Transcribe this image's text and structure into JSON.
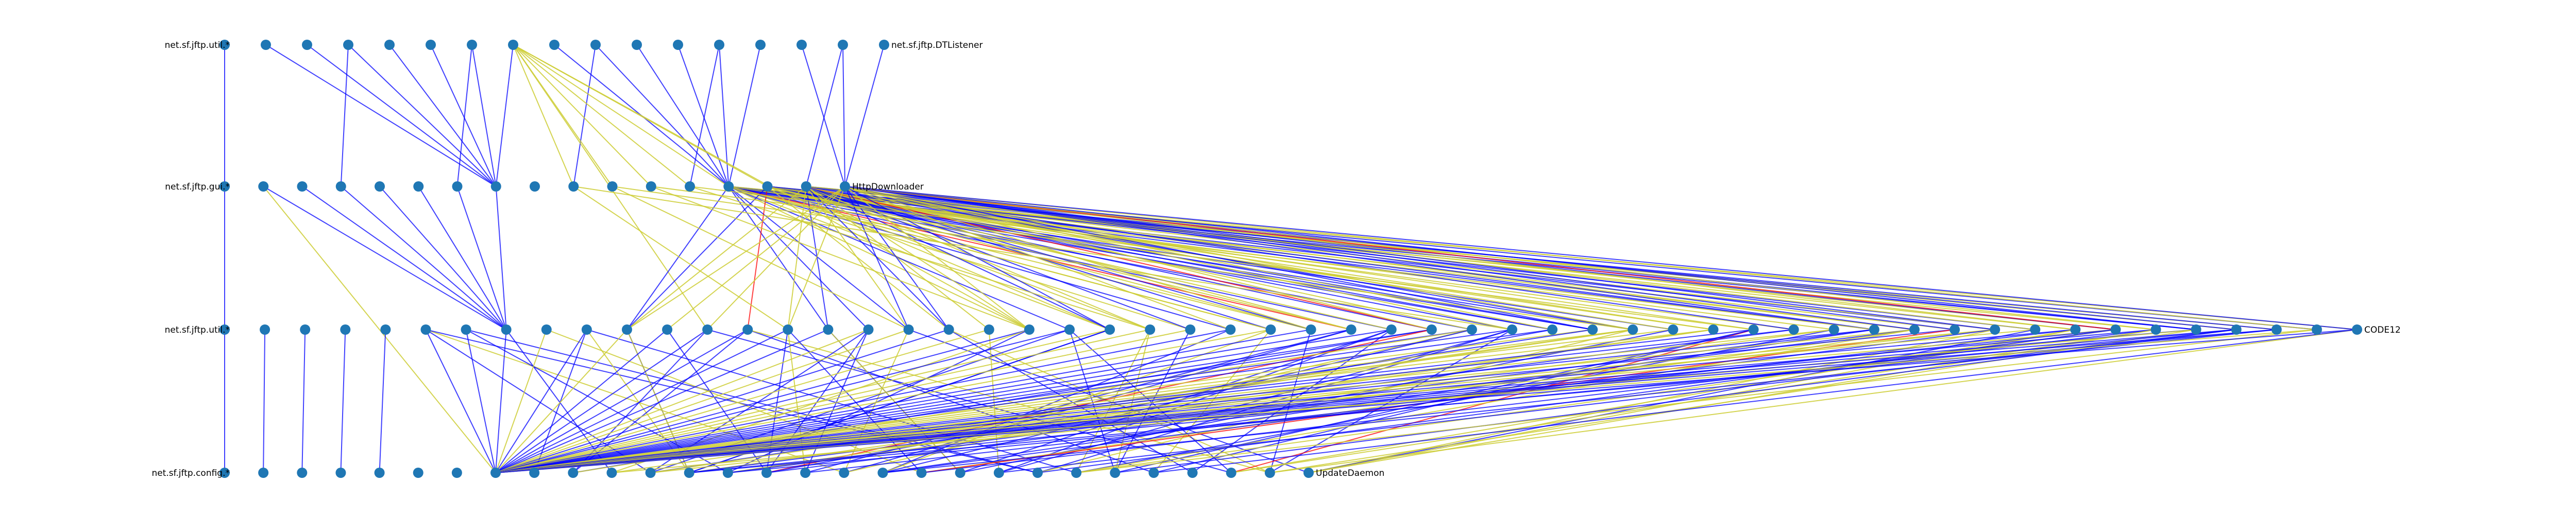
{
  "diagram": {
    "type": "layered-dependency-graph",
    "legend": null,
    "colors": {
      "node": "#1f77b4",
      "edge_primary": "#0000ff",
      "edge_secondary": "#cccc33",
      "edge_tertiary": "#ff0000",
      "label": "#000000"
    },
    "layers": [
      {
        "first_label": "net.sf.jftp.util.*",
        "last_label": "net.sf.jftp.DTListener",
        "count": 17
      },
      {
        "first_label": "net.sf.jftp.gui.*",
        "last_label": "HttpDownloader",
        "count": 17
      },
      {
        "first_label": "net.sf.jftp.util.*",
        "last_label": "CODE12",
        "count": 54
      },
      {
        "first_label": "net.sf.jftp.config.*",
        "last_label": "UpdateDaemon",
        "count": 29
      }
    ]
  }
}
